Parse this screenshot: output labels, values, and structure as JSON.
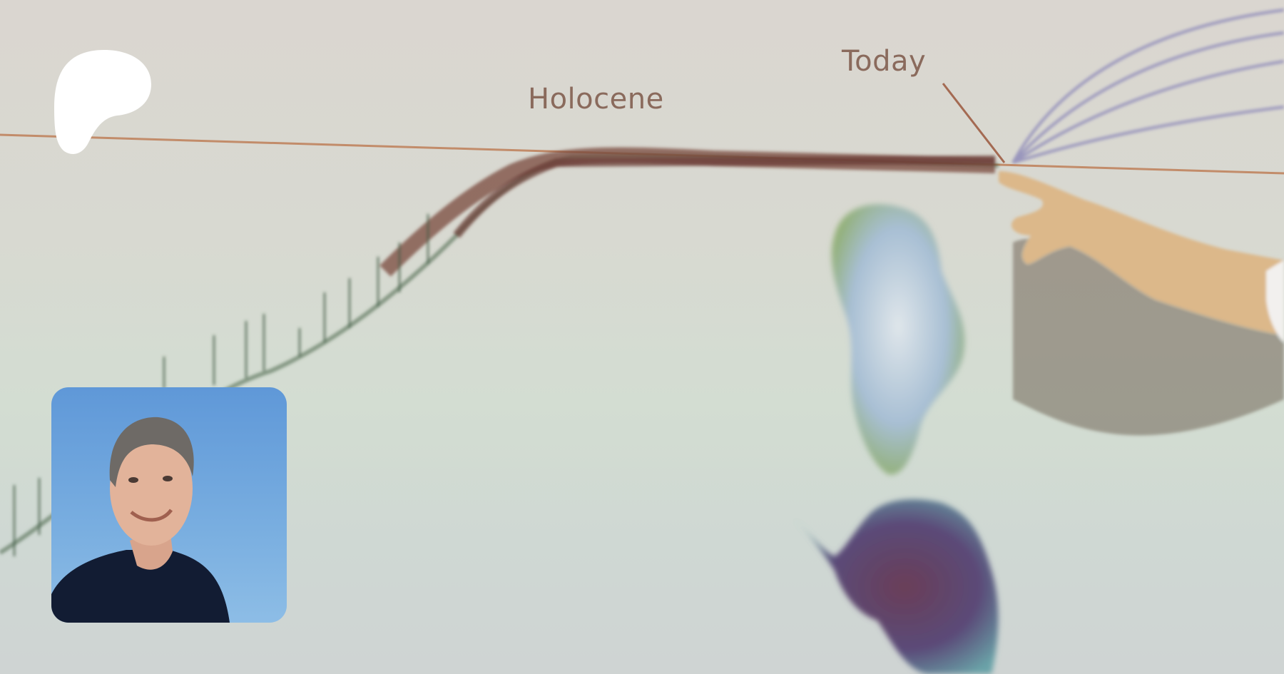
{
  "slide": {
    "labels": {
      "holocene": "Holocene",
      "today": "Today"
    }
  },
  "brand": {
    "logo_icon": "patreon-logo",
    "logo_color": "#ffffff"
  },
  "creator": {
    "avatar_icon": "creator-avatar-photo"
  },
  "colors": {
    "timeline_line": "#c0845f",
    "data_curve": "#7a4a3e",
    "projection_lines": "#8a86b8"
  }
}
